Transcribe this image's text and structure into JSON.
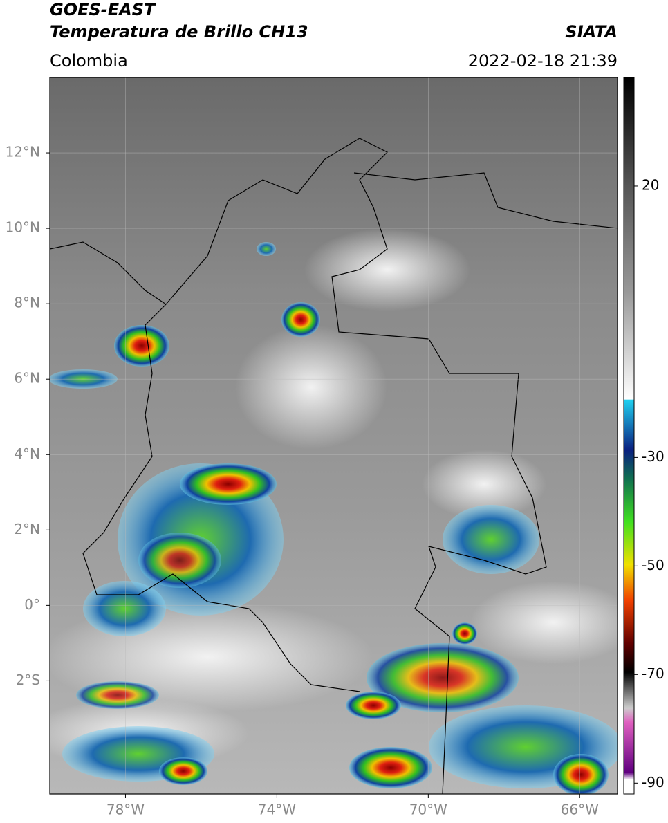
{
  "header": {
    "title": "GOES-EAST",
    "subtitle": "Temperatura de Brillo CH13",
    "source": "SIATA",
    "region": "Colombia",
    "datetime": "2022-02-18 21:39"
  },
  "map": {
    "xlim": [
      -80,
      -65
    ],
    "ylim": [
      -5,
      14
    ],
    "xticks": [
      {
        "value": -78,
        "label": "78°W"
      },
      {
        "value": -74,
        "label": "74°W"
      },
      {
        "value": -70,
        "label": "70°W"
      },
      {
        "value": -66,
        "label": "66°W"
      }
    ],
    "yticks": [
      {
        "value": 12,
        "label": "12°N"
      },
      {
        "value": 10,
        "label": "10°N"
      },
      {
        "value": 8,
        "label": "8°N"
      },
      {
        "value": 6,
        "label": "6°N"
      },
      {
        "value": 4,
        "label": "4°N"
      },
      {
        "value": 2,
        "label": "2°N"
      },
      {
        "value": 0,
        "label": "0°"
      },
      {
        "value": -2,
        "label": "2°S"
      }
    ],
    "grid": true
  },
  "colorbar": {
    "lim": [
      -92,
      40
    ],
    "ticks": [
      20,
      -30,
      -50,
      -70,
      -90
    ]
  }
}
